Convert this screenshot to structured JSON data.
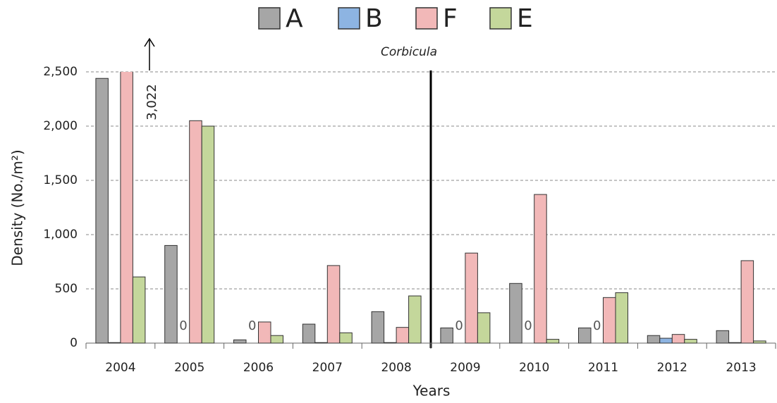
{
  "chart_data": {
    "type": "bar",
    "title": "Corbicula",
    "xlabel": "Years",
    "ylabel": "Density (No./m²)",
    "categories": [
      "2004",
      "2005",
      "2006",
      "2007",
      "2008",
      "2009",
      "2010",
      "2011",
      "2012",
      "2013"
    ],
    "series": [
      {
        "name": "A",
        "color": "#a6a6a6",
        "values": [
          2440,
          900,
          30,
          175,
          290,
          140,
          550,
          140,
          70,
          115
        ]
      },
      {
        "name": "B",
        "color": "#8db4e2",
        "values": [
          5,
          0,
          0,
          5,
          5,
          0,
          0,
          0,
          45,
          5
        ],
        "value_labels": [
          null,
          "0",
          "0",
          null,
          null,
          "0",
          "0",
          "0",
          null,
          null
        ]
      },
      {
        "name": "F",
        "color": "#f2b8b8",
        "values": [
          3022,
          2050,
          195,
          715,
          145,
          830,
          1370,
          420,
          80,
          760
        ],
        "value_labels": [
          "3,022",
          null,
          null,
          null,
          null,
          null,
          null,
          null,
          null,
          null
        ]
      },
      {
        "name": "E",
        "color": "#c4d79b",
        "values": [
          610,
          2000,
          70,
          95,
          435,
          280,
          35,
          465,
          35,
          20
        ]
      }
    ],
    "ylim": [
      0,
      2500
    ],
    "yticks": [
      0,
      500,
      {
        "value": 1000,
        "label": "1,000"
      },
      {
        "value": 1500,
        "label": "1,500"
      },
      {
        "value": 2000,
        "label": "2,000"
      },
      {
        "value": 2500,
        "label": "2,500"
      }
    ],
    "grid": true,
    "legend": "top"
  }
}
